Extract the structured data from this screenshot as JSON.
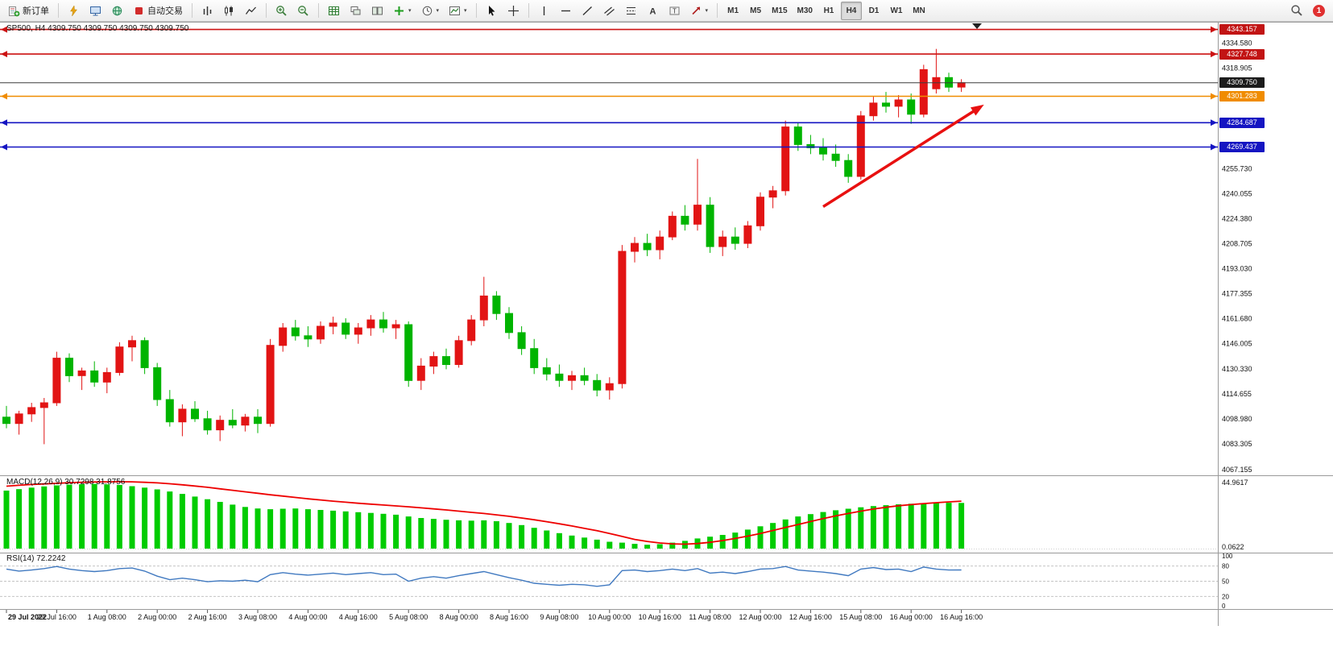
{
  "toolbar": {
    "new_order_label": "新订单",
    "algo_trading_label": "自动交易",
    "timeframes": [
      "M1",
      "M5",
      "M15",
      "M30",
      "H1",
      "H4",
      "D1",
      "W1",
      "MN"
    ],
    "active_timeframe": "H4",
    "notification_count": "1"
  },
  "chart": {
    "symbol_label": "SP500, H4 4309.750 4309.750 4309.750 4309.750",
    "price_axis_labels": [
      "4334.580",
      "4318.905",
      "4255.730",
      "4240.055",
      "4224.380",
      "4208.705",
      "4193.030",
      "4177.355",
      "4161.680",
      "4146.005",
      "4130.330",
      "4114.655",
      "4098.980",
      "4083.305",
      "4067.155"
    ],
    "badges": [
      {
        "text": "4343.157",
        "price": 4343.157,
        "bg": "#c21414"
      },
      {
        "text": "4327.748",
        "price": 4327.748,
        "bg": "#c21414"
      },
      {
        "text": "4309.750",
        "price": 4309.75,
        "bg": "#1c1c1c"
      },
      {
        "text": "4301.283",
        "price": 4301.283,
        "bg": "#f08c00"
      },
      {
        "text": "4284.687",
        "price": 4284.687,
        "bg": "#1515c2"
      },
      {
        "text": "4269.437",
        "price": 4269.437,
        "bg": "#1515c2"
      }
    ]
  },
  "macd": {
    "label": "MACD(12,26,9) 30.7298 31.8756",
    "axis_max": "44.9617",
    "axis_min": "0.0622"
  },
  "rsi": {
    "label": "RSI(14) 72.2242",
    "axis_labels": [
      "100",
      "80",
      "50",
      "20",
      "0"
    ]
  },
  "chart_data": {
    "type": "candlestick",
    "symbol": "SP500",
    "timeframe": "H4",
    "up_color": "#e21414",
    "down_color": "#00b400",
    "price_range": [
      4063.5,
      4347.5
    ],
    "ohlc": [
      [
        4100,
        4107,
        4093,
        4096
      ],
      [
        4096,
        4104,
        4089,
        4102
      ],
      [
        4102,
        4109,
        4097,
        4106
      ],
      [
        4106,
        4112,
        4083,
        4109
      ],
      [
        4109,
        4141,
        4107,
        4137
      ],
      [
        4137,
        4140,
        4122,
        4126
      ],
      [
        4126,
        4131,
        4117,
        4129
      ],
      [
        4129,
        4135,
        4119,
        4122
      ],
      [
        4122,
        4131,
        4115,
        4128
      ],
      [
        4128,
        4147,
        4126,
        4144
      ],
      [
        4144,
        4151,
        4135,
        4148
      ],
      [
        4148,
        4150,
        4127,
        4131
      ],
      [
        4131,
        4134,
        4107,
        4111
      ],
      [
        4111,
        4117,
        4094,
        4097
      ],
      [
        4097,
        4108,
        4088,
        4105
      ],
      [
        4105,
        4110,
        4097,
        4099
      ],
      [
        4099,
        4104,
        4089,
        4092
      ],
      [
        4092,
        4101,
        4085,
        4098
      ],
      [
        4098,
        4105,
        4093,
        4095
      ],
      [
        4095,
        4102,
        4091,
        4100
      ],
      [
        4100,
        4105,
        4090,
        4096
      ],
      [
        4096,
        4149,
        4094,
        4145
      ],
      [
        4145,
        4159,
        4141,
        4156
      ],
      [
        4156,
        4161,
        4148,
        4151
      ],
      [
        4151,
        4157,
        4144,
        4149
      ],
      [
        4149,
        4160,
        4146,
        4157
      ],
      [
        4157,
        4163,
        4152,
        4159
      ],
      [
        4159,
        4162,
        4149,
        4152
      ],
      [
        4152,
        4159,
        4146,
        4156
      ],
      [
        4156,
        4164,
        4151,
        4161
      ],
      [
        4161,
        4166,
        4153,
        4156
      ],
      [
        4156,
        4161,
        4149,
        4158
      ],
      [
        4158,
        4160,
        4119,
        4123
      ],
      [
        4123,
        4137,
        4117,
        4132
      ],
      [
        4132,
        4141,
        4127,
        4138
      ],
      [
        4138,
        4143,
        4130,
        4133
      ],
      [
        4133,
        4151,
        4131,
        4148
      ],
      [
        4148,
        4164,
        4145,
        4161
      ],
      [
        4161,
        4188,
        4157,
        4176
      ],
      [
        4176,
        4179,
        4161,
        4165
      ],
      [
        4165,
        4169,
        4149,
        4153
      ],
      [
        4153,
        4157,
        4139,
        4143
      ],
      [
        4143,
        4149,
        4127,
        4131
      ],
      [
        4131,
        4137,
        4123,
        4127
      ],
      [
        4127,
        4133,
        4119,
        4123
      ],
      [
        4123,
        4129,
        4117,
        4126
      ],
      [
        4126,
        4131,
        4120,
        4123
      ],
      [
        4123,
        4127,
        4113,
        4117
      ],
      [
        4117,
        4125,
        4111,
        4121
      ],
      [
        4121,
        4208,
        4118,
        4204
      ],
      [
        4204,
        4213,
        4197,
        4209
      ],
      [
        4209,
        4215,
        4201,
        4205
      ],
      [
        4205,
        4217,
        4199,
        4213
      ],
      [
        4213,
        4229,
        4211,
        4226
      ],
      [
        4226,
        4233,
        4217,
        4221
      ],
      [
        4221,
        4262,
        4217,
        4233
      ],
      [
        4233,
        4238,
        4203,
        4207
      ],
      [
        4207,
        4217,
        4201,
        4213
      ],
      [
        4213,
        4219,
        4205,
        4209
      ],
      [
        4209,
        4223,
        4206,
        4220
      ],
      [
        4220,
        4241,
        4217,
        4238
      ],
      [
        4238,
        4245,
        4231,
        4242
      ],
      [
        4242,
        4286,
        4239,
        4282
      ],
      [
        4282,
        4285,
        4267,
        4271
      ],
      [
        4271,
        4277,
        4265,
        4269
      ],
      [
        4269,
        4275,
        4261,
        4265
      ],
      [
        4265,
        4271,
        4257,
        4261
      ],
      [
        4261,
        4265,
        4247,
        4251
      ],
      [
        4251,
        4292,
        4249,
        4289
      ],
      [
        4289,
        4301,
        4286,
        4297
      ],
      [
        4297,
        4304,
        4291,
        4295
      ],
      [
        4295,
        4302,
        4288,
        4299
      ],
      [
        4299,
        4303,
        4284,
        4290
      ],
      [
        4290,
        4321,
        4288,
        4318
      ],
      [
        4306,
        4331,
        4303,
        4313
      ],
      [
        4313,
        4316,
        4304,
        4307
      ],
      [
        4307,
        4312,
        4304,
        4309.75
      ]
    ],
    "hlines": [
      {
        "price": 4343.157,
        "color": "#cc1111",
        "width": 1.6,
        "ends": true
      },
      {
        "price": 4327.748,
        "color": "#cc1111",
        "width": 1.6,
        "ends": true
      },
      {
        "price": 4309.75,
        "color": "#3c3c3c",
        "width": 1,
        "ends": false
      },
      {
        "price": 4301.283,
        "color": "#f08c00",
        "width": 1.6,
        "ends": true
      },
      {
        "price": 4284.687,
        "color": "#1515c2",
        "width": 1.6,
        "ends": true
      },
      {
        "price": 4269.437,
        "color": "#1515c2",
        "width": 1.6,
        "ends": true
      }
    ],
    "arrow": {
      "from_bar": 65,
      "from_price": 4232,
      "to_bar": 77.8,
      "to_price": 4296,
      "color": "#e81010"
    },
    "macd": {
      "range": [
        0,
        44.9617
      ],
      "histogram": [
        39,
        40,
        41,
        41.8,
        42.5,
        43,
        43.3,
        43.5,
        43.2,
        42.8,
        42,
        41,
        39.8,
        38.4,
        36.8,
        35,
        33.2,
        31.4,
        29.6,
        28,
        27,
        26.5,
        26.8,
        27,
        26.5,
        26,
        25.5,
        25,
        24.5,
        24,
        23.4,
        22.8,
        21.6,
        20.6,
        20,
        19.4,
        19,
        18.8,
        19,
        18.4,
        17.2,
        15.8,
        14,
        12.2,
        10.4,
        8.8,
        7.4,
        6,
        4.6,
        4,
        3.2,
        2.6,
        3,
        4,
        5.2,
        6.8,
        8,
        9.2,
        10.8,
        12.8,
        15,
        17.2,
        19.6,
        21.6,
        23.2,
        24.6,
        25.8,
        26.8,
        27.8,
        28.6,
        29.2,
        29.8,
        30.2,
        30.5,
        30.7,
        30.8,
        30.73
      ],
      "signal": [
        42,
        42.6,
        43.1,
        43.5,
        43.9,
        44.3,
        44.6,
        44.8,
        44.9,
        44.96,
        44.9,
        44.6,
        44.2,
        43.6,
        42.9,
        42.1,
        41.2,
        40.2,
        39.2,
        38.2,
        37.2,
        36.2,
        35.3,
        34.4,
        33.5,
        32.7,
        31.9,
        31.2,
        30.5,
        29.9,
        29.3,
        28.7,
        28.1,
        27.4,
        26.7,
        26,
        25.2,
        24.4,
        23.6,
        22.7,
        21.7,
        20.6,
        19.4,
        18.1,
        16.7,
        15.2,
        13.6,
        12,
        10.2,
        8.2,
        6.2,
        4.8,
        3.8,
        3.2,
        3,
        3.4,
        4.2,
        5.4,
        6.8,
        8.4,
        10.2,
        12.2,
        14.2,
        16.2,
        18.2,
        20.2,
        22,
        23.6,
        25.2,
        26.6,
        27.8,
        28.8,
        29.6,
        30.3,
        30.9,
        31.4,
        31.88
      ]
    },
    "rsi": {
      "range": [
        0,
        100
      ],
      "levels": [
        80,
        50,
        20
      ],
      "values": [
        74,
        70,
        72,
        75,
        79,
        74,
        71,
        69,
        71,
        75,
        76,
        70,
        60,
        53,
        56,
        53,
        49,
        51,
        50,
        52,
        49,
        63,
        67,
        64,
        62,
        64,
        66,
        63,
        65,
        67,
        63,
        64,
        50,
        56,
        59,
        56,
        61,
        65,
        69,
        63,
        57,
        52,
        46,
        44,
        42,
        44,
        43,
        40,
        43,
        71,
        72,
        69,
        71,
        74,
        71,
        75,
        66,
        68,
        65,
        69,
        74,
        75,
        79,
        72,
        70,
        68,
        65,
        61,
        74,
        77,
        73,
        74,
        69,
        78,
        74,
        72,
        72.2
      ]
    },
    "time_labels": [
      "29 Jul 2022",
      "29 Jul 16:00",
      "1 Aug 08:00",
      "2 Aug 00:00",
      "2 Aug 16:00",
      "3 Aug 08:00",
      "4 Aug 00:00",
      "4 Aug 16:00",
      "5 Aug 08:00",
      "8 Aug 00:00",
      "8 Aug 16:00",
      "9 Aug 08:00",
      "10 Aug 00:00",
      "10 Aug 16:00",
      "11 Aug 08:00",
      "12 Aug 00:00",
      "12 Aug 16:00",
      "15 Aug 08:00",
      "16 Aug 00:00",
      "16 Aug 16:00"
    ],
    "label_every": 4
  }
}
